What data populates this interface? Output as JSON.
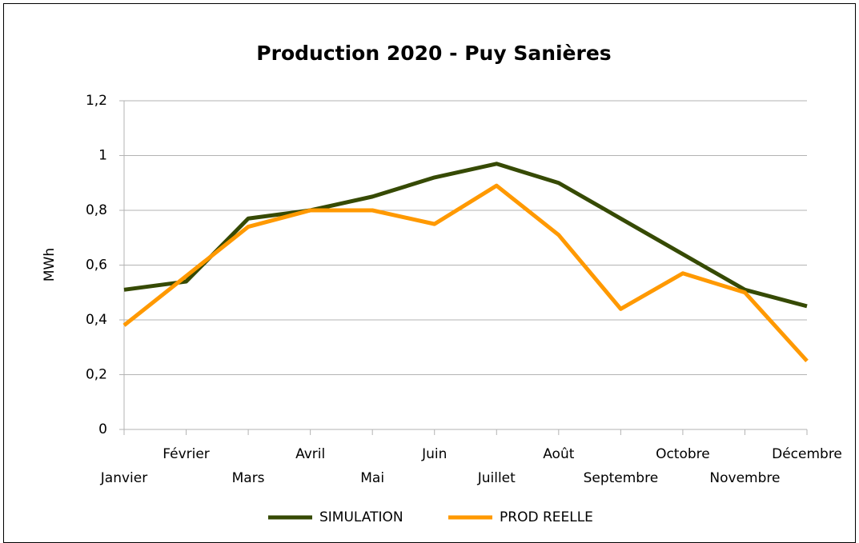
{
  "chart_data": {
    "type": "line",
    "title": "Production 2020 - Puy Sanières",
    "y_label": "MWh",
    "categories": [
      "Janvier",
      "Février",
      "Mars",
      "Avril",
      "Mai",
      "Juin",
      "Juillet",
      "Août",
      "Septembre",
      "Octobre",
      "Novembre",
      "Décembre"
    ],
    "series": [
      {
        "name": "SIMULATION",
        "color": "#364a04",
        "values": [
          0.51,
          0.54,
          0.77,
          0.8,
          0.85,
          0.92,
          0.97,
          0.9,
          0.77,
          0.64,
          0.51,
          0.45
        ]
      },
      {
        "name": "PROD REELLE",
        "color": "#ff9900",
        "values": [
          0.38,
          0.56,
          0.74,
          0.8,
          0.8,
          0.75,
          0.89,
          0.71,
          0.44,
          0.57,
          0.5,
          0.25
        ]
      }
    ],
    "ylim": [
      0,
      1.2
    ],
    "yticks": [
      0,
      {
        "value": 0.2,
        "label": "0,2"
      },
      {
        "value": 0.4,
        "label": "0,4"
      },
      {
        "value": 0.6,
        "label": "0,6"
      },
      {
        "value": 0.8,
        "label": "0,8"
      },
      1,
      {
        "value": 1.2,
        "label": "1,2"
      }
    ],
    "grid": true,
    "legend": "bottom"
  }
}
